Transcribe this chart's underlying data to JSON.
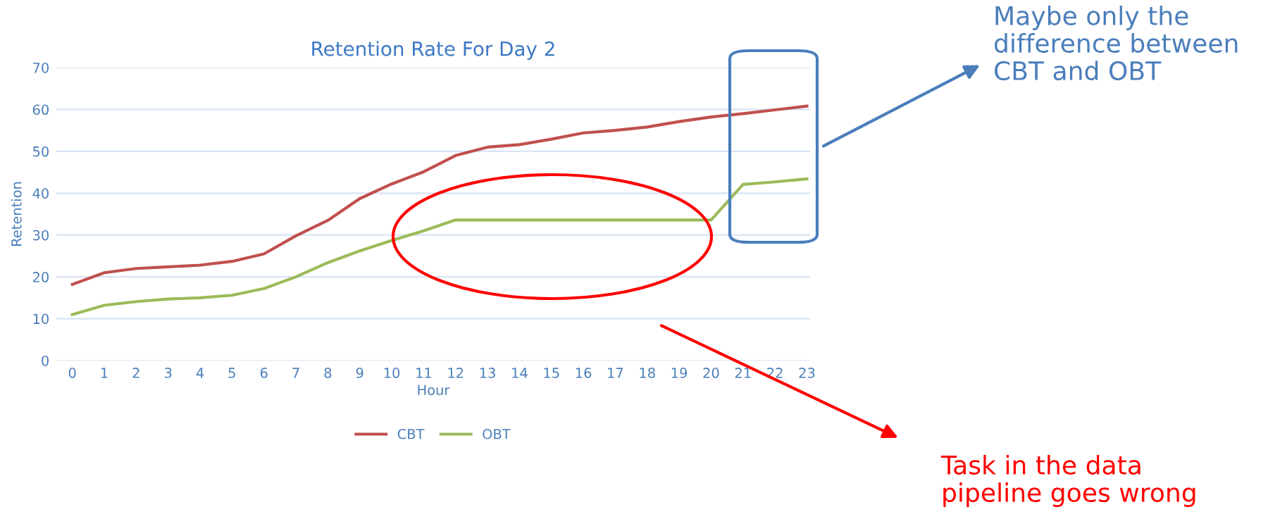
{
  "chart_data": {
    "type": "line",
    "title": "Retention Rate For Day 2",
    "xlabel": "Hour",
    "ylabel": "Retention",
    "categories": [
      "0",
      "1",
      "2",
      "3",
      "4",
      "5",
      "6",
      "7",
      "8",
      "9",
      "10",
      "11",
      "12",
      "13",
      "14",
      "15",
      "16",
      "17",
      "18",
      "19",
      "20",
      "21",
      "22",
      "23"
    ],
    "series": [
      {
        "name": "CBT",
        "color": "#c0504d",
        "values": [
          18.2,
          21,
          22,
          22.4,
          22.8,
          23.7,
          25.5,
          29.8,
          33.5,
          38.7,
          42.2,
          45.1,
          49,
          51,
          51.6,
          52.9,
          54.4,
          55,
          55.8,
          57.1,
          58.2,
          59,
          59.9,
          60.8
        ]
      },
      {
        "name": "OBT",
        "color": "#9bbb59",
        "values": [
          11,
          13.2,
          14.1,
          14.7,
          15,
          15.6,
          17.2,
          20,
          23.4,
          26.2,
          28.7,
          31,
          33.6,
          33.6,
          33.6,
          33.6,
          33.6,
          33.6,
          33.6,
          33.6,
          33.6,
          42.1,
          42.7,
          43.4
        ]
      }
    ],
    "ylim": [
      0,
      70
    ],
    "yticks": [
      0,
      10,
      20,
      30,
      40,
      50,
      60,
      70
    ],
    "grid": "y",
    "legend": "bottom",
    "marker": "none",
    "line_style": "solid",
    "annotations": [
      "Maybe only the\ndifference between\nCBT and OBT",
      "Task in the data\npipeline goes wrong"
    ]
  }
}
